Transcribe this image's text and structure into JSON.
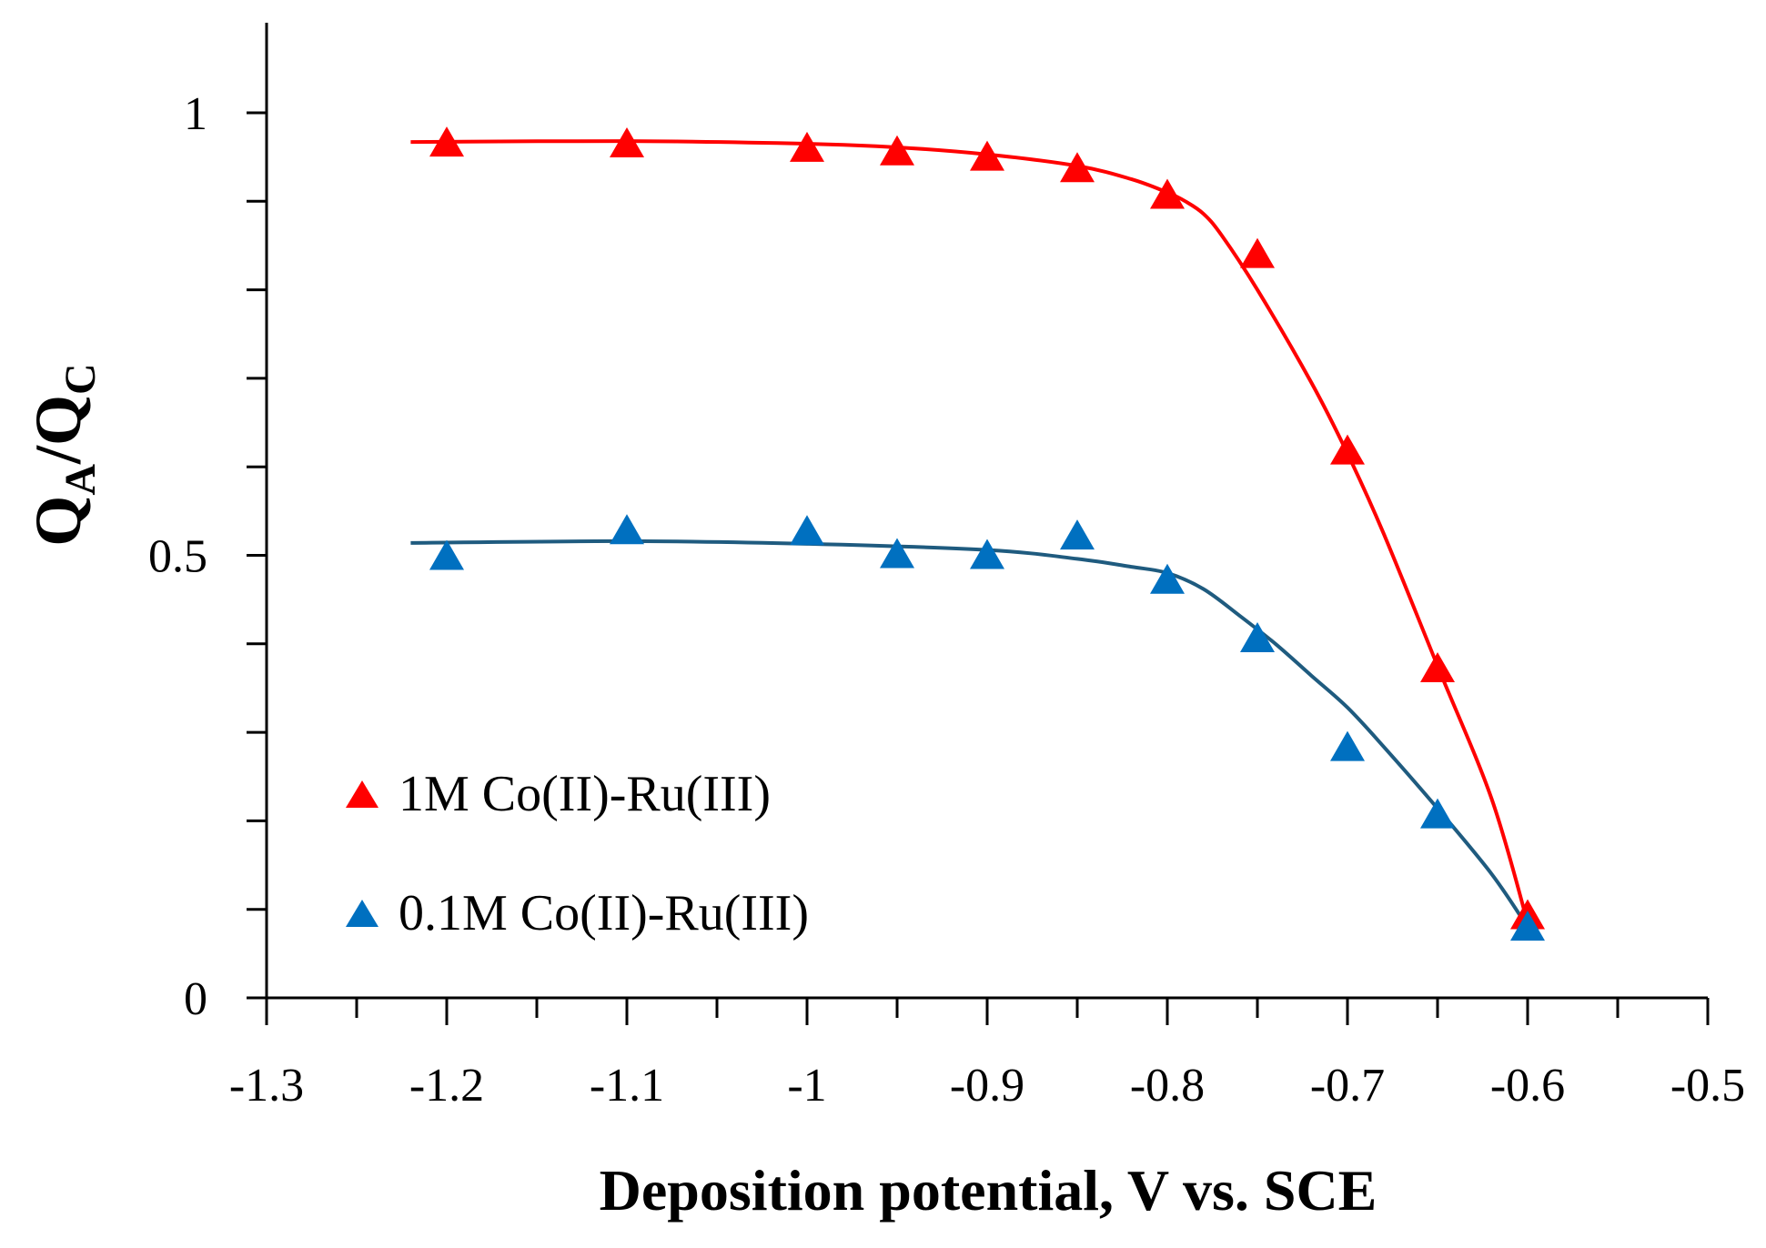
{
  "chart_data": {
    "type": "scatter",
    "xlabel": "Deposition potential, V vs. SCE",
    "ylabel": {
      "main_1": "Q",
      "sub_1": "A",
      "sep": "/",
      "main_2": "Q",
      "sub_2": "C"
    },
    "xlim": [
      -1.3,
      -0.5
    ],
    "ylim": [
      0,
      1.1
    ],
    "x_ticks": [
      -1.3,
      -1.2,
      -1.1,
      -1.0,
      -0.9,
      -0.8,
      -0.7,
      -0.6,
      -0.5
    ],
    "x_tick_labels": [
      "-1.3",
      "-1.2",
      "-1.1",
      "-1",
      "-0.9",
      "-0.8",
      "-0.7",
      "-0.6",
      "-0.5"
    ],
    "y_ticks": [
      0,
      0.5,
      1
    ],
    "y_tick_labels": [
      "0",
      "0.5",
      "1"
    ],
    "grid": false,
    "legend_position": "bottom-left",
    "series": [
      {
        "name": "1M Co(II)-Ru(III)",
        "color": "#ff0000",
        "marker": "triangle",
        "x": [
          -1.2,
          -1.1,
          -1.0,
          -0.95,
          -0.9,
          -0.85,
          -0.8,
          -0.75,
          -0.7,
          -0.65,
          -0.6
        ],
        "y": [
          0.966,
          0.965,
          0.96,
          0.956,
          0.95,
          0.937,
          0.907,
          0.84,
          0.618,
          0.372,
          0.093
        ],
        "fit_x": [
          -1.22,
          -1.1,
          -1.0,
          -0.95,
          -0.9,
          -0.85,
          -0.82,
          -0.8,
          -0.79,
          -0.78,
          -0.77,
          -0.75,
          -0.72,
          -0.7,
          -0.68,
          -0.65,
          -0.62,
          -0.6
        ],
        "fit_y": [
          0.967,
          0.968,
          0.965,
          0.961,
          0.953,
          0.94,
          0.925,
          0.91,
          0.9,
          0.886,
          0.862,
          0.8,
          0.695,
          0.615,
          0.525,
          0.375,
          0.225,
          0.085
        ]
      },
      {
        "name": "0.1M Co(II)-Ru(III)",
        "color": "#0070c0",
        "fit_color": "#1f5b7f",
        "marker": "triangle",
        "x": [
          -1.2,
          -1.1,
          -1.0,
          -0.95,
          -0.9,
          -0.85,
          -0.8,
          -0.75,
          -0.7,
          -0.65,
          -0.6
        ],
        "y": [
          0.499,
          0.528,
          0.527,
          0.501,
          0.5,
          0.522,
          0.472,
          0.406,
          0.283,
          0.207,
          0.08
        ],
        "fit_x": [
          -1.22,
          -1.1,
          -1.0,
          -0.9,
          -0.85,
          -0.82,
          -0.8,
          -0.78,
          -0.76,
          -0.74,
          -0.72,
          -0.7,
          -0.68,
          -0.65,
          -0.62,
          -0.6
        ],
        "fit_y": [
          0.514,
          0.516,
          0.513,
          0.506,
          0.496,
          0.487,
          0.48,
          0.462,
          0.432,
          0.4,
          0.364,
          0.328,
          0.284,
          0.214,
          0.14,
          0.08
        ]
      }
    ]
  }
}
